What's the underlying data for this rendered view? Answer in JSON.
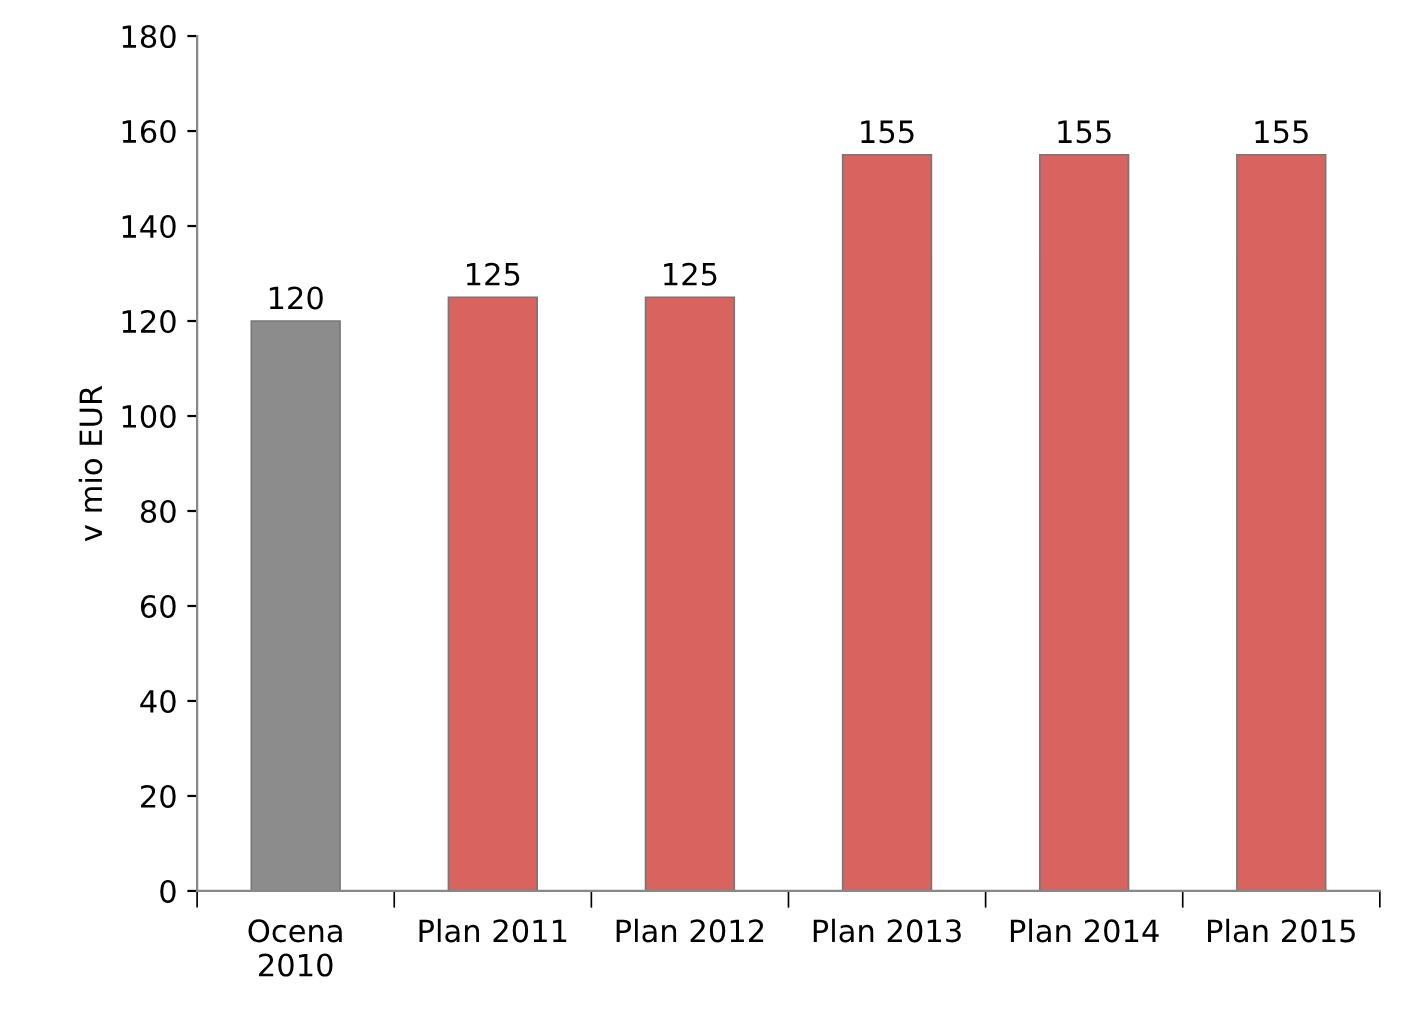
{
  "chart_data": {
    "type": "bar",
    "ylabel": "v mio EUR",
    "categories": [
      "Ocena\n2010",
      "Plan 2011",
      "Plan 2012",
      "Plan 2013",
      "Plan 2014",
      "Plan 2015"
    ],
    "values": [
      120,
      125,
      125,
      155,
      155,
      155
    ],
    "colors": [
      "#8c8c8c",
      "#d8635f",
      "#d8635f",
      "#d8635f",
      "#d8635f",
      "#d8635f"
    ],
    "ylim": [
      0,
      180
    ],
    "yticks": [
      0,
      20,
      40,
      60,
      80,
      100,
      120,
      140,
      160,
      180
    ],
    "data_labels": true,
    "grid": false,
    "legend": false
  }
}
